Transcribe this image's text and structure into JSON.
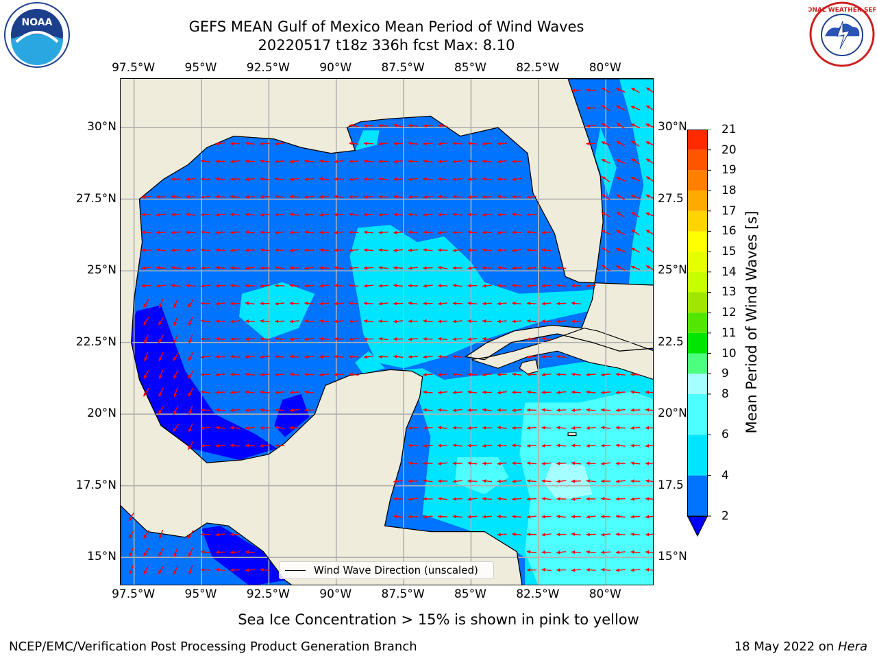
{
  "title": {
    "line1": "GEFS MEAN Gulf of Mexico Mean Period of Wind Waves",
    "line2": "20220517 t18z 336h fcst   Max: 8.10"
  },
  "map": {
    "lon_labels": [
      "97.5°W",
      "95°W",
      "92.5°W",
      "90°W",
      "87.5°W",
      "85°W",
      "82.5°W",
      "80°W"
    ],
    "lat_labels_left": [
      "30°N",
      "27.5°N",
      "25°N",
      "22.5°N",
      "20°N",
      "17.5°N",
      "15°N"
    ],
    "lat_labels_right": [
      "30°N",
      "27.5",
      "25°N",
      "22.5",
      "20°N",
      "17.5",
      "15°N"
    ],
    "lon_range": [
      -98,
      -78.2
    ],
    "lat_range": [
      14,
      31.7
    ],
    "colors": {
      "land": "#efecdc",
      "arrow": "#ff0000",
      "grid": "#b0b0b0",
      "coast": "#000000"
    }
  },
  "legend": {
    "label": "Wind Wave Direction (unscaled)"
  },
  "colorbar": {
    "title": "Mean Period of Wind Waves [s]",
    "ticks": [
      "2",
      "4",
      "6",
      "8",
      "9",
      "10",
      "11",
      "12",
      "13",
      "14",
      "15",
      "16",
      "17",
      "18",
      "19",
      "20",
      "21"
    ],
    "bounds": [
      2,
      4,
      6,
      8,
      9,
      10,
      11,
      12,
      13,
      14,
      15,
      16,
      17,
      18,
      19,
      20,
      21
    ],
    "colors": [
      "#0073ff",
      "#00e5ff",
      "#4dffff",
      "#a6ffff",
      "#4cff7f",
      "#00e600",
      "#52e600",
      "#a0e600",
      "#c8ff00",
      "#e6ff00",
      "#ffff00",
      "#ffd400",
      "#ffaa00",
      "#ff8000",
      "#ff5500",
      "#ff2a00"
    ],
    "under_color": "#0000ff"
  },
  "note": "Sea Ice Concentration > 15% is shown in pink to yellow",
  "footer": {
    "left": "NCEP/EMC/Verification Post Processing Product Generation Branch",
    "date": "18 May 2022 on",
    "machine": "Hera"
  },
  "logos": {
    "noaa_text": "NOAA",
    "nws_text": "NATIONAL WEATHER SERVICE"
  }
}
